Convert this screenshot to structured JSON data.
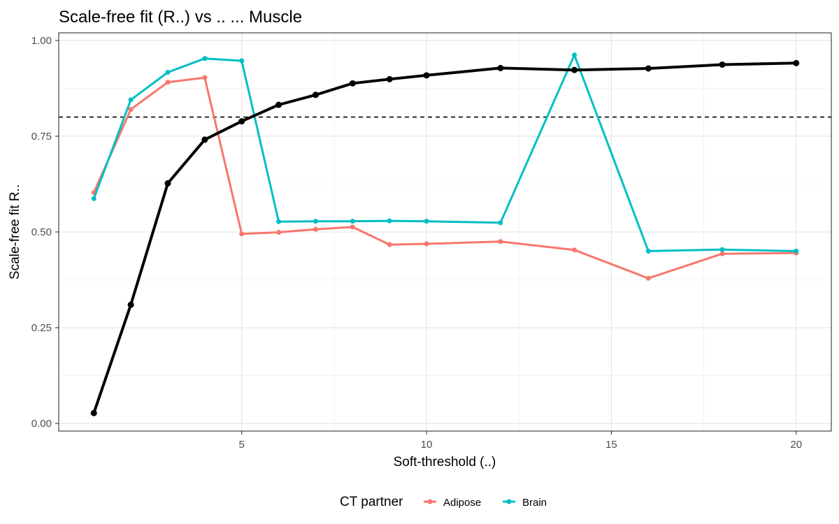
{
  "chart_data": {
    "type": "line",
    "title": "Scale-free fit (R..) vs .. ... Muscle",
    "xlabel": "Soft-threshold (..)",
    "ylabel": "Scale-free fit R..",
    "xlim": [
      0.05,
      20.95
    ],
    "ylim": [
      -0.02,
      1.02
    ],
    "x_ticks": [
      5,
      10,
      15,
      20
    ],
    "x_tick_labels": [
      "5",
      "10",
      "15",
      "20"
    ],
    "y_ticks": [
      0,
      0.25,
      0.5,
      0.75,
      1
    ],
    "y_tick_labels": [
      "0.00",
      "0.25",
      "0.50",
      "0.75",
      "1.00"
    ],
    "grid": true,
    "reference_line": {
      "y": 0.8,
      "style": "dashed",
      "color": "#000000"
    },
    "base_series": {
      "color": "#000000",
      "x": [
        1,
        2,
        3,
        4,
        5,
        6,
        7,
        8,
        9,
        10,
        12,
        14,
        16,
        18,
        20
      ],
      "values": [
        0.027,
        0.31,
        0.627,
        0.741,
        0.789,
        0.832,
        0.858,
        0.888,
        0.899,
        0.909,
        0.928,
        0.923,
        0.927,
        0.937,
        0.941
      ]
    },
    "series": [
      {
        "name": "Adipose",
        "color": "#F8766D",
        "x": [
          1,
          2,
          3,
          4,
          5,
          6,
          7,
          8,
          9,
          10,
          12,
          14,
          16,
          18,
          20
        ],
        "values": [
          0.603,
          0.82,
          0.891,
          0.903,
          0.495,
          0.499,
          0.507,
          0.513,
          0.467,
          0.469,
          0.475,
          0.453,
          0.379,
          0.443,
          0.445
        ]
      },
      {
        "name": "Brain",
        "color": "#00BFC4",
        "x": [
          1,
          2,
          3,
          4,
          5,
          6,
          7,
          8,
          9,
          10,
          12,
          14,
          16,
          18,
          20
        ],
        "values": [
          0.587,
          0.845,
          0.917,
          0.953,
          0.947,
          0.527,
          0.528,
          0.528,
          0.529,
          0.528,
          0.524,
          0.962,
          0.45,
          0.454,
          0.45
        ]
      }
    ],
    "legend": {
      "title": "CT partner",
      "position": "bottom"
    }
  }
}
